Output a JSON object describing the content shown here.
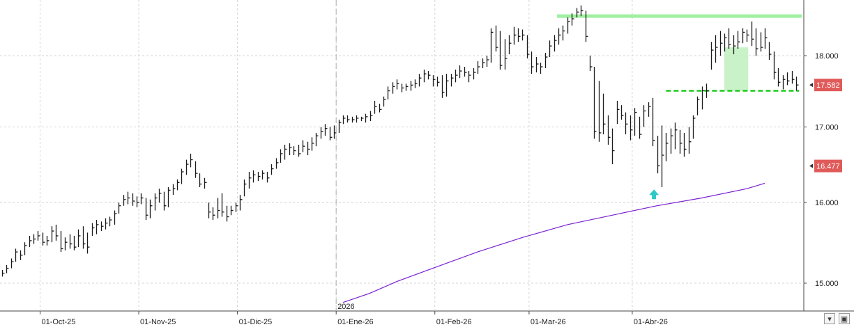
{
  "chart_data": {
    "type": "ohlc",
    "y_scale": "log",
    "ylim": [
      14.8,
      18.75
    ],
    "y_ticks": [
      "15.000",
      "16.000",
      "17.000",
      "18.000"
    ],
    "x_tick_labels": [
      "01-Oct-25",
      "01-Nov-25",
      "01-Dic-25",
      "01-Ene-26",
      "01-Feb-26",
      "01-Mar-26",
      "01-Abr-26"
    ],
    "year_marker": "2026",
    "grid": true,
    "bars_hlc": [
      [
        15.16,
        15.08,
        15.12
      ],
      [
        15.22,
        15.12,
        15.18
      ],
      [
        15.3,
        15.18,
        15.26
      ],
      [
        15.42,
        15.26,
        15.38
      ],
      [
        15.4,
        15.28,
        15.34
      ],
      [
        15.5,
        15.34,
        15.46
      ],
      [
        15.58,
        15.44,
        15.52
      ],
      [
        15.6,
        15.48,
        15.54
      ],
      [
        15.64,
        15.52,
        15.58
      ],
      [
        15.62,
        15.46,
        15.5
      ],
      [
        15.58,
        15.46,
        15.52
      ],
      [
        15.7,
        15.5,
        15.64
      ],
      [
        15.72,
        15.52,
        15.58
      ],
      [
        15.64,
        15.38,
        15.42
      ],
      [
        15.56,
        15.4,
        15.5
      ],
      [
        15.6,
        15.42,
        15.48
      ],
      [
        15.58,
        15.4,
        15.44
      ],
      [
        15.66,
        15.44,
        15.58
      ],
      [
        15.7,
        15.42,
        15.48
      ],
      [
        15.62,
        15.36,
        15.44
      ],
      [
        15.74,
        15.58,
        15.68
      ],
      [
        15.78,
        15.6,
        15.72
      ],
      [
        15.76,
        15.64,
        15.7
      ],
      [
        15.8,
        15.66,
        15.74
      ],
      [
        15.82,
        15.7,
        15.78
      ],
      [
        15.9,
        15.72,
        15.86
      ],
      [
        16.0,
        15.86,
        15.96
      ],
      [
        16.1,
        15.96,
        16.04
      ],
      [
        16.14,
        15.98,
        16.06
      ],
      [
        16.12,
        15.96,
        16.02
      ],
      [
        16.08,
        15.94,
        16.0
      ],
      [
        16.12,
        15.98,
        16.06
      ],
      [
        16.06,
        15.78,
        15.84
      ],
      [
        16.04,
        15.8,
        15.96
      ],
      [
        16.12,
        15.9,
        16.06
      ],
      [
        16.18,
        16.0,
        16.12
      ],
      [
        16.14,
        15.9,
        15.96
      ],
      [
        16.2,
        15.94,
        16.16
      ],
      [
        16.24,
        16.1,
        16.18
      ],
      [
        16.3,
        16.16,
        16.26
      ],
      [
        16.44,
        16.24,
        16.4
      ],
      [
        16.56,
        16.36,
        16.5
      ],
      [
        16.64,
        16.46,
        16.56
      ],
      [
        16.54,
        16.32,
        16.38
      ],
      [
        16.38,
        16.2,
        16.24
      ],
      [
        16.32,
        16.18,
        16.26
      ],
      [
        16.0,
        15.8,
        15.88
      ],
      [
        15.94,
        15.78,
        15.84
      ],
      [
        16.06,
        15.8,
        15.9
      ],
      [
        16.12,
        15.82,
        15.88
      ],
      [
        15.96,
        15.76,
        15.82
      ],
      [
        15.96,
        15.84,
        15.9
      ],
      [
        16.0,
        15.88,
        15.96
      ],
      [
        16.1,
        15.9,
        16.04
      ],
      [
        16.3,
        16.08,
        16.24
      ],
      [
        16.4,
        16.18,
        16.32
      ],
      [
        16.42,
        16.26,
        16.36
      ],
      [
        16.4,
        16.28,
        16.34
      ],
      [
        16.42,
        16.3,
        16.38
      ],
      [
        16.4,
        16.26,
        16.32
      ],
      [
        16.5,
        16.36,
        16.44
      ],
      [
        16.58,
        16.44,
        16.52
      ],
      [
        16.7,
        16.52,
        16.64
      ],
      [
        16.76,
        16.56,
        16.7
      ],
      [
        16.78,
        16.62,
        16.72
      ],
      [
        16.74,
        16.62,
        16.68
      ],
      [
        16.76,
        16.6,
        16.64
      ],
      [
        16.82,
        16.66,
        16.74
      ],
      [
        16.8,
        16.62,
        16.7
      ],
      [
        16.86,
        16.68,
        16.78
      ],
      [
        16.92,
        16.74,
        16.88
      ],
      [
        17.0,
        16.84,
        16.94
      ],
      [
        17.04,
        16.88,
        16.98
      ],
      [
        17.0,
        16.82,
        16.86
      ],
      [
        17.02,
        16.84,
        16.92
      ],
      [
        17.1,
        16.92,
        17.06
      ],
      [
        17.16,
        17.04,
        17.12
      ],
      [
        17.16,
        17.06,
        17.1
      ],
      [
        17.14,
        17.06,
        17.1
      ],
      [
        17.16,
        17.06,
        17.12
      ],
      [
        17.14,
        17.08,
        17.12
      ],
      [
        17.18,
        17.06,
        17.14
      ],
      [
        17.22,
        17.08,
        17.16
      ],
      [
        17.36,
        17.18,
        17.28
      ],
      [
        17.32,
        17.2,
        17.24
      ],
      [
        17.42,
        17.28,
        17.38
      ],
      [
        17.56,
        17.38,
        17.5
      ],
      [
        17.62,
        17.46,
        17.56
      ],
      [
        17.66,
        17.52,
        17.6
      ],
      [
        17.6,
        17.48,
        17.54
      ],
      [
        17.6,
        17.5,
        17.56
      ],
      [
        17.64,
        17.5,
        17.58
      ],
      [
        17.66,
        17.54,
        17.6
      ],
      [
        17.74,
        17.56,
        17.68
      ],
      [
        17.8,
        17.62,
        17.74
      ],
      [
        17.78,
        17.66,
        17.72
      ],
      [
        17.72,
        17.56,
        17.66
      ],
      [
        17.7,
        17.56,
        17.62
      ],
      [
        17.72,
        17.4,
        17.48
      ],
      [
        17.74,
        17.42,
        17.64
      ],
      [
        17.74,
        17.56,
        17.68
      ],
      [
        17.8,
        17.62,
        17.72
      ],
      [
        17.86,
        17.68,
        17.78
      ],
      [
        17.84,
        17.7,
        17.76
      ],
      [
        17.78,
        17.62,
        17.72
      ],
      [
        17.82,
        17.66,
        17.76
      ],
      [
        17.92,
        17.74,
        17.84
      ],
      [
        17.96,
        17.82,
        17.9
      ],
      [
        18.0,
        17.84,
        17.94
      ],
      [
        18.4,
        17.9,
        18.34
      ],
      [
        18.44,
        18.06,
        18.12
      ],
      [
        18.36,
        17.8,
        17.86
      ],
      [
        18.24,
        17.8,
        17.96
      ],
      [
        18.3,
        18.02,
        18.18
      ],
      [
        18.42,
        18.16,
        18.3
      ],
      [
        18.4,
        18.2,
        18.28
      ],
      [
        18.38,
        18.22,
        18.3
      ],
      [
        18.3,
        17.96,
        18.02
      ],
      [
        18.06,
        17.74,
        17.84
      ],
      [
        17.98,
        17.76,
        17.88
      ],
      [
        17.9,
        17.74,
        17.84
      ],
      [
        18.04,
        17.82,
        17.98
      ],
      [
        18.22,
        17.98,
        18.14
      ],
      [
        18.3,
        18.06,
        18.22
      ],
      [
        18.4,
        18.16,
        18.3
      ],
      [
        18.44,
        18.22,
        18.36
      ],
      [
        18.56,
        18.32,
        18.5
      ],
      [
        18.62,
        18.44,
        18.54
      ],
      [
        18.7,
        18.56,
        18.64
      ],
      [
        18.74,
        18.58,
        18.66
      ],
      [
        18.66,
        18.2,
        18.28
      ],
      [
        18.0,
        17.78,
        17.84
      ],
      [
        17.84,
        16.84,
        16.94
      ],
      [
        17.64,
        16.8,
        16.92
      ],
      [
        17.46,
        16.9,
        17.04
      ],
      [
        17.16,
        16.76,
        16.86
      ],
      [
        16.98,
        16.5,
        16.68
      ],
      [
        17.36,
        17.04,
        17.24
      ],
      [
        17.3,
        17.1,
        17.16
      ],
      [
        17.2,
        16.9,
        17.04
      ],
      [
        17.16,
        16.82,
        16.96
      ],
      [
        17.26,
        16.88,
        17.2
      ],
      [
        17.14,
        16.84,
        16.9
      ],
      [
        17.3,
        17.0,
        17.22
      ],
      [
        17.34,
        17.14,
        17.28
      ],
      [
        17.4,
        16.74,
        16.82
      ],
      [
        16.88,
        16.38,
        16.48
      ],
      [
        17.02,
        16.2,
        16.62
      ],
      [
        16.92,
        16.54,
        16.78
      ],
      [
        16.98,
        16.64,
        16.88
      ],
      [
        17.06,
        16.7,
        16.96
      ],
      [
        16.96,
        16.64,
        16.78
      ],
      [
        16.92,
        16.6,
        16.7
      ],
      [
        17.0,
        16.64,
        16.8
      ],
      [
        17.16,
        16.84,
        17.12
      ],
      [
        17.42,
        17.16,
        17.38
      ],
      [
        17.56,
        17.24,
        17.5
      ],
      [
        17.6,
        17.4,
        17.5
      ],
      [
        18.2,
        17.8,
        18.08
      ],
      [
        18.3,
        17.9,
        18.12
      ],
      [
        18.36,
        18.0,
        18.18
      ],
      [
        18.32,
        18.06,
        18.26
      ],
      [
        18.4,
        18.1,
        18.16
      ],
      [
        18.3,
        18.02,
        18.14
      ],
      [
        18.36,
        18.1,
        18.2
      ],
      [
        18.4,
        18.18,
        18.34
      ],
      [
        18.38,
        18.2,
        18.3
      ],
      [
        18.5,
        18.14,
        18.24
      ],
      [
        18.4,
        18.0,
        18.1
      ],
      [
        18.34,
        18.06,
        18.12
      ],
      [
        18.4,
        18.1,
        18.26
      ],
      [
        18.2,
        17.94,
        18.02
      ],
      [
        18.06,
        17.66,
        17.76
      ],
      [
        17.82,
        17.56,
        17.62
      ],
      [
        17.72,
        17.52,
        17.66
      ],
      [
        17.76,
        17.58,
        17.64
      ],
      [
        17.78,
        17.6,
        17.66
      ],
      [
        17.7,
        17.5,
        17.582
      ]
    ],
    "moving_average": {
      "points": [
        [
          76,
          14.77
        ],
        [
          82,
          14.88
        ],
        [
          88,
          15.02
        ],
        [
          96,
          15.18
        ],
        [
          106,
          15.38
        ],
        [
          116,
          15.56
        ],
        [
          126,
          15.72
        ],
        [
          136,
          15.84
        ],
        [
          146,
          15.96
        ],
        [
          156,
          16.06
        ],
        [
          166,
          16.18
        ],
        [
          170,
          16.25
        ]
      ],
      "last_value": 16.477
    },
    "resistance": 18.58,
    "support": 17.5,
    "price_label": "17.582",
    "ma_label": "16.477",
    "colors": {
      "bars": "#1a1a1a",
      "ma_line": "#7a1fd1",
      "resistance": "#9ff09f",
      "support": "#19cc19",
      "breakout_box": "#bff0bf",
      "arrow": "#2ec8c8",
      "price_label_bg": "#e05a5a",
      "grid": "#d4d4d4",
      "axis_text": "#222222"
    }
  },
  "ui": {
    "corner_buttons": [
      "chevron-down-icon",
      "restore-icon"
    ]
  }
}
